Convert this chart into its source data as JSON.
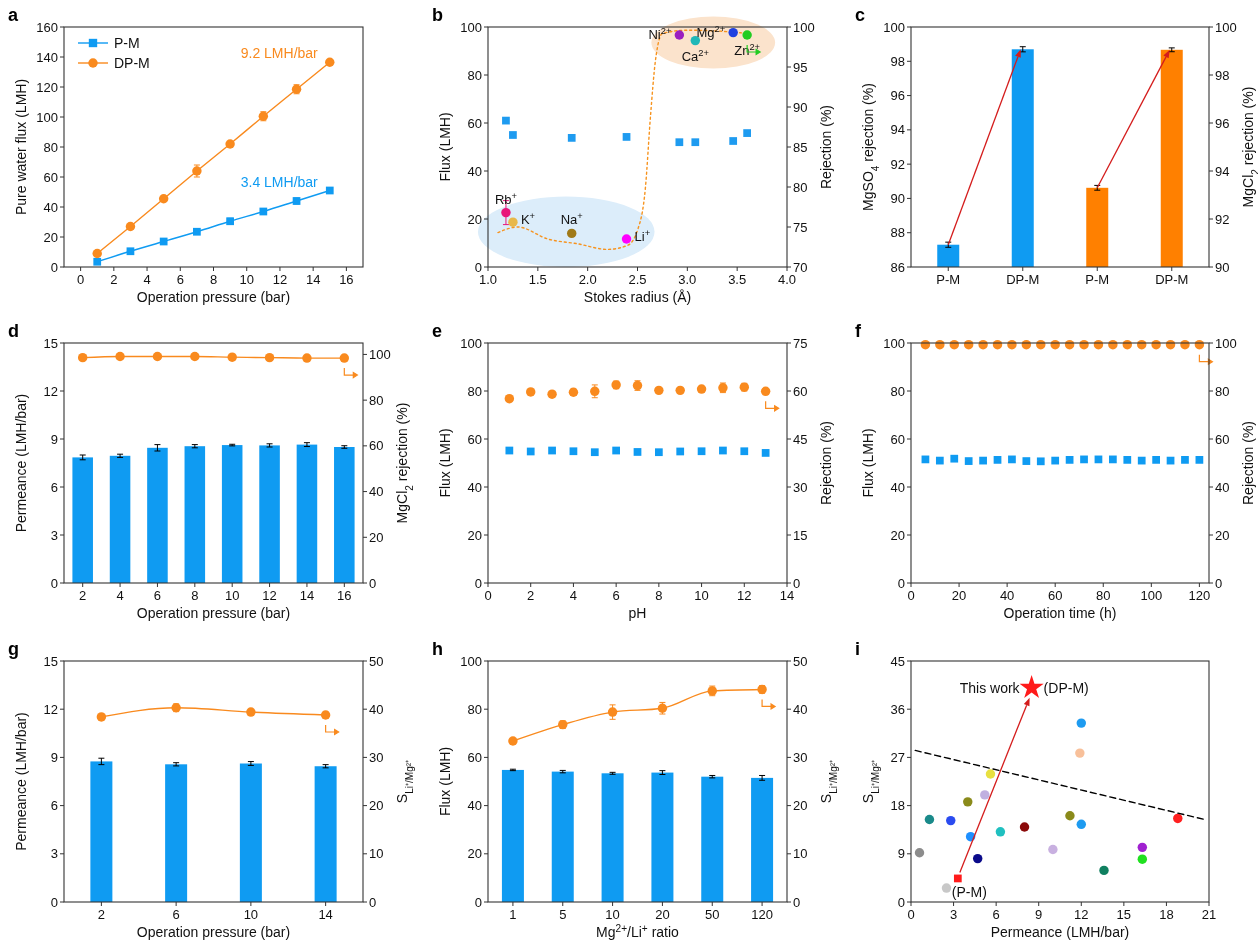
{
  "chart_data": [
    {
      "type": "line",
      "title": "a",
      "xlabel": "Operation pressure (bar)",
      "ylabel": "Pure water flux (LMH)",
      "x": [
        1,
        3,
        5,
        7,
        9,
        11,
        13,
        15
      ],
      "xlim": [
        -1,
        17
      ],
      "xticks": [
        0,
        2,
        4,
        6,
        8,
        10,
        12,
        14,
        16
      ],
      "ylim": [
        0,
        160
      ],
      "yticks": [
        0,
        20,
        40,
        60,
        80,
        100,
        120,
        140,
        160
      ],
      "legend": "top left",
      "series": [
        {
          "name": "P-M",
          "color": "#0f9bf2",
          "marker": "square",
          "values": [
            3.5,
            10.5,
            17,
            23.5,
            30.5,
            37,
            44,
            51
          ],
          "errors": [
            null,
            null,
            null,
            null,
            2,
            null,
            2,
            null
          ]
        },
        {
          "name": "DP-M",
          "color": "#f98a1e",
          "marker": "circle",
          "values": [
            9,
            27,
            45.5,
            64,
            82,
            100.5,
            118.5,
            136.5
          ],
          "errors": [
            null,
            null,
            null,
            4,
            null,
            3,
            3,
            null
          ]
        }
      ],
      "annotations": [
        {
          "text": "9.2 LMH/bar",
          "x": 15,
          "y": 136.5
        },
        {
          "text": "3.4 LMH/bar",
          "x": 15,
          "y": 51
        }
      ]
    },
    {
      "type": "scatter",
      "title": "b",
      "xlabel": "Stokes radius (Å)",
      "ylabel": "Flux (LMH)",
      "y2label": "Rejection (%)",
      "xlim": [
        1,
        4
      ],
      "xticks": [
        {
          "value": 1,
          "label": "1.0"
        },
        {
          "value": 1.5,
          "label": "1.5"
        },
        {
          "value": 2,
          "label": "2.0"
        },
        {
          "value": 2.5,
          "label": "2.5"
        },
        {
          "value": 3,
          "label": "3.0"
        },
        {
          "value": 3.5,
          "label": "3.5"
        },
        {
          "value": 4,
          "label": "4.0"
        }
      ],
      "ylim": [
        0,
        100
      ],
      "yticks": [
        0,
        20,
        40,
        60,
        80,
        100
      ],
      "y2lim": [
        70,
        100
      ],
      "y2ticks": [
        70,
        75,
        80,
        85,
        90,
        95,
        100
      ],
      "series": [
        {
          "color": "#1e9bf0",
          "marker": "square",
          "x": [
            1.18,
            1.25,
            1.84,
            2.39,
            2.92,
            3.08,
            3.46,
            3.6
          ],
          "values": [
            61,
            55,
            53.8,
            54.2,
            52,
            52,
            52.5,
            55.8
          ]
        },
        {
          "type": "line",
          "axis": "y2",
          "color": "#f7931e",
          "line_style": "dotted",
          "marker": "none",
          "x": [
            1.1,
            1.3,
            1.6,
            1.9,
            2.2,
            2.4,
            2.5,
            2.58,
            2.63,
            2.68,
            2.75,
            3.0,
            3.3,
            3.6
          ],
          "values": [
            74.3,
            75,
            73.5,
            72.9,
            72.2,
            72.7,
            74.6,
            80,
            88.8,
            95.8,
            99.2,
            99.6,
            99.5,
            99.2
          ]
        },
        {
          "name": "Rb$^{+}$",
          "axis": "y2",
          "color": "#e8157a",
          "marker": "circle",
          "x": [
            1.18
          ],
          "values": [
            76.8
          ],
          "errors": [
            1.5
          ]
        },
        {
          "name": "K$^{+}$",
          "axis": "y2",
          "color": "#e8b84a",
          "marker": "circle",
          "x": [
            1.25
          ],
          "values": [
            75.6
          ]
        },
        {
          "name": "Na$^{+}$",
          "axis": "y2",
          "color": "#a07a18",
          "marker": "circle",
          "x": [
            1.84
          ],
          "values": [
            74.2
          ]
        },
        {
          "name": "Li$^{+}$",
          "axis": "y2",
          "color": "#ff00ff",
          "marker": "circle",
          "x": [
            2.39
          ],
          "values": [
            73.5
          ]
        },
        {
          "name": "Ni$^{2+}$",
          "axis": "y2",
          "color": "#9b1fc0",
          "marker": "circle",
          "x": [
            2.92
          ],
          "values": [
            99
          ]
        },
        {
          "name": "Ca$^{2+}$",
          "axis": "y2",
          "color": "#1fb8b8",
          "marker": "circle",
          "x": [
            3.08
          ],
          "values": [
            98.3
          ]
        },
        {
          "name": "Mg$^{2+}$",
          "axis": "y2",
          "color": "#2040e0",
          "marker": "circle",
          "x": [
            3.46
          ],
          "values": [
            99.3
          ]
        },
        {
          "name": "Zn$^{2+}$",
          "axis": "y2",
          "color": "#22cc22",
          "marker": "circle",
          "x": [
            3.6
          ],
          "values": [
            99
          ]
        }
      ]
    },
    {
      "type": "bar",
      "title": "c",
      "ylabel": "MgSO$_{4}$ rejection (%)",
      "y2label": "MgCl$_{2}$ rejection (%)",
      "categories": [
        "P-M",
        "DP-M",
        "P-M",
        "DP-M"
      ],
      "ylim": [
        86,
        100
      ],
      "yticks": [
        86,
        88,
        90,
        92,
        94,
        96,
        98,
        100
      ],
      "y2lim": [
        90,
        100
      ],
      "y2ticks": [
        90,
        92,
        94,
        96,
        98,
        100
      ],
      "series": [
        {
          "color": "#0f9bf2",
          "values": [
            87.3,
            98.7,
            null,
            null
          ],
          "errors": [
            0.15,
            0.15,
            null,
            null
          ]
        },
        {
          "axis": "y2",
          "color": "#ff8000",
          "values": [
            null,
            null,
            93.3,
            99.05
          ],
          "errors": [
            null,
            null,
            0.1,
            0.08
          ]
        }
      ]
    },
    {
      "type": "bar",
      "title": "d",
      "xlabel": "Operation pressure (bar)",
      "ylabel": "Permeance (LMH/bar)",
      "y2label": "MgCl$_{2}$ rejection (%)",
      "categories": [
        "2",
        "4",
        "6",
        "8",
        "10",
        "12",
        "14",
        "16"
      ],
      "ylim": [
        0,
        15
      ],
      "yticks": [
        0,
        3,
        6,
        9,
        12,
        15
      ],
      "y2lim": [
        0,
        105
      ],
      "y2ticks": [
        0,
        20,
        40,
        60,
        80,
        100
      ],
      "series": [
        {
          "color": "#0f9bf2",
          "values": [
            7.85,
            7.95,
            8.45,
            8.55,
            8.62,
            8.6,
            8.65,
            8.5
          ],
          "errors": [
            0.15,
            0.1,
            0.2,
            0.1,
            0.05,
            0.1,
            0.12,
            0.08
          ]
        },
        {
          "type": "line",
          "axis": "y2",
          "color": "#f98a1e",
          "marker": "circle",
          "values": [
            98.6,
            99.1,
            99.1,
            99.1,
            98.8,
            98.6,
            98.4,
            98.4
          ]
        }
      ]
    },
    {
      "type": "scatter",
      "title": "e",
      "xlabel": "pH",
      "ylabel": "Flux (LMH)",
      "y2label": "Rejection (%)",
      "x": [
        1,
        2,
        3,
        4,
        5,
        6,
        7,
        8,
        9,
        10,
        11,
        12,
        13
      ],
      "xlim": [
        0,
        14
      ],
      "xticks": [
        0,
        2,
        4,
        6,
        8,
        10,
        12,
        14
      ],
      "ylim": [
        0,
        100
      ],
      "yticks": [
        0,
        20,
        40,
        60,
        80,
        100
      ],
      "y2lim": [
        0,
        75
      ],
      "y2ticks": [
        0,
        15,
        30,
        45,
        60,
        75
      ],
      "series": [
        {
          "color": "#0f9bf2",
          "marker": "square",
          "values": [
            55.2,
            54.8,
            55.2,
            54.9,
            54.5,
            55.2,
            54.6,
            54.5,
            54.8,
            54.9,
            55.2,
            54.9,
            54.2
          ]
        },
        {
          "axis": "y2",
          "color": "#f98a1e",
          "marker": "circle",
          "values": [
            57.6,
            59.7,
            59,
            59.6,
            59.9,
            61.9,
            61.7,
            60.2,
            60.2,
            60.6,
            61,
            61.2,
            59.9
          ],
          "errors": [
            null,
            null,
            null,
            1,
            2,
            1.2,
            1.5,
            null,
            null,
            null,
            1.5,
            1.2,
            null
          ]
        }
      ]
    },
    {
      "type": "scatter",
      "title": "f",
      "xlabel": "Operation time (h)",
      "ylabel": "Flux (LMH)",
      "y2label": "Rejection (%)",
      "x": [
        6,
        12,
        18,
        24,
        30,
        36,
        42,
        48,
        54,
        60,
        66,
        72,
        78,
        84,
        90,
        96,
        102,
        108,
        114,
        120
      ],
      "xlim": [
        0,
        124
      ],
      "xticks": [
        0,
        20,
        40,
        60,
        80,
        100,
        120
      ],
      "ylim": [
        0,
        100
      ],
      "yticks": [
        0,
        20,
        40,
        60,
        80,
        100
      ],
      "y2lim": [
        0,
        100
      ],
      "y2ticks": [
        0,
        20,
        40,
        60,
        80,
        100
      ],
      "series": [
        {
          "color": "#0f9bf2",
          "marker": "square",
          "values": [
            51.5,
            51,
            51.8,
            50.8,
            51,
            51.3,
            51.5,
            50.8,
            50.7,
            51,
            51.3,
            51.5,
            51.5,
            51.5,
            51.3,
            51,
            51.3,
            51,
            51.3,
            51.3
          ]
        },
        {
          "axis": "y2",
          "color": "#f98a1e",
          "marker": "circle",
          "values": [
            99.3,
            99.3,
            99.3,
            99.3,
            99.3,
            99.3,
            99.3,
            99.3,
            99.3,
            99.3,
            99.3,
            99.3,
            99.3,
            99.3,
            99.3,
            99.3,
            99.3,
            99.3,
            99.3,
            99.3
          ]
        }
      ]
    },
    {
      "type": "bar",
      "title": "g",
      "xlabel": "Operation pressure (bar)",
      "ylabel": "Permeance (LMH/bar)",
      "y2label": "S$_{Li⁺/Mg²⁺}$",
      "categories": [
        "2",
        "6",
        "10",
        "14"
      ],
      "ylim": [
        0,
        15
      ],
      "yticks": [
        0,
        3,
        6,
        9,
        12,
        15
      ],
      "y2lim": [
        0,
        50
      ],
      "y2ticks": [
        0,
        10,
        20,
        30,
        40,
        50
      ],
      "series": [
        {
          "color": "#0f9bf2",
          "values": [
            8.75,
            8.57,
            8.62,
            8.45
          ],
          "errors": [
            0.2,
            0.1,
            0.12,
            0.1
          ]
        },
        {
          "type": "line",
          "axis": "y2",
          "color": "#f98a1e",
          "marker": "circle",
          "values": [
            38.4,
            40.3,
            39.4,
            38.8
          ],
          "errors": [
            null,
            0.8,
            0.4,
            0.6
          ]
        }
      ]
    },
    {
      "type": "bar",
      "title": "h",
      "xlabel": "Mg$^{2+}$/Li$^{+}$ ratio",
      "ylabel": "Flux (LMH)",
      "y2label": "S$_{Li⁺/Mg²⁺}$",
      "categories": [
        "1",
        "5",
        "10",
        "20",
        "50",
        "120"
      ],
      "ylim": [
        0,
        100
      ],
      "yticks": [
        0,
        20,
        40,
        60,
        80,
        100
      ],
      "y2lim": [
        0,
        50
      ],
      "y2ticks": [
        0,
        10,
        20,
        30,
        40,
        50
      ],
      "series": [
        {
          "color": "#0f9bf2",
          "values": [
            54.8,
            54.1,
            53.4,
            53.7,
            52,
            51.5
          ],
          "errors": [
            0.3,
            0.5,
            0.4,
            0.8,
            0.5,
            1
          ]
        },
        {
          "type": "line",
          "axis": "y2",
          "color": "#f98a1e",
          "marker": "circle",
          "values": [
            33.4,
            36.8,
            39.4,
            40.2,
            43.8,
            44.1
          ],
          "errors": [
            0.5,
            0.8,
            1.5,
            1.2,
            1,
            0.8
          ]
        }
      ]
    },
    {
      "type": "scatter",
      "title": "i",
      "xlabel": "Permeance (LMH/bar)",
      "ylabel": "S$_{Li⁺/Mg²⁺}$",
      "xlim": [
        0,
        21
      ],
      "xticks": [
        0,
        3,
        6,
        9,
        12,
        15,
        18,
        21
      ],
      "ylim": [
        0,
        45
      ],
      "yticks": [
        0,
        9,
        18,
        27,
        36,
        45
      ],
      "series": [
        {
          "marker": "circle",
          "x": [
            0.6,
            1.3,
            2.8,
            2.5,
            4.0,
            5.2,
            5.6,
            4.2,
            4.7,
            6.3,
            8.0,
            10.0,
            11.2,
            12.0,
            12.0,
            11.9,
            13.6,
            16.3,
            16.3,
            18.8
          ],
          "values": [
            9.2,
            15.4,
            15.2,
            2.6,
            18.7,
            20,
            23.9,
            12.2,
            8.1,
            13.1,
            14,
            9.8,
            16.1,
            14.5,
            33.4,
            27.8,
            5.9,
            10.2,
            8,
            15.6
          ],
          "colors": [
            "#8c8c8c",
            "#1a8a8a",
            "#2a4bf0",
            "#c8c8c8",
            "#8a8a1a",
            "#c0b0e0",
            "#e8e040",
            "#1e90ff",
            "#0a0a8a",
            "#20c0c0",
            "#8b0a0a",
            "#c8b0e0",
            "#8a8a1a",
            "#1e9bf0",
            "#1e9bf0",
            "#f8c09a",
            "#108060",
            "#a020d0",
            "#20e020",
            "#ff2020"
          ]
        },
        {
          "type": "line",
          "color": "#000000",
          "line_style": "dashed",
          "marker": "none",
          "x": [
            0.3,
            20.7
          ],
          "values": [
            28.3,
            15.4
          ]
        },
        {
          "color": "#ff1a1a",
          "marker": "square",
          "x": [
            3.3
          ],
          "values": [
            4.4
          ]
        },
        {
          "color": "#ff1a1a",
          "marker": "star",
          "x": [
            8.5
          ],
          "values": [
            40
          ]
        }
      ],
      "annotations": [
        {
          "text": "This work",
          "x": 8.5,
          "y": 40
        },
        {
          "text": "(DP-M)",
          "x": 8.5,
          "y": 40
        },
        {
          "text": "(P-M)",
          "x": 3.3,
          "y": 4.4
        }
      ]
    }
  ]
}
